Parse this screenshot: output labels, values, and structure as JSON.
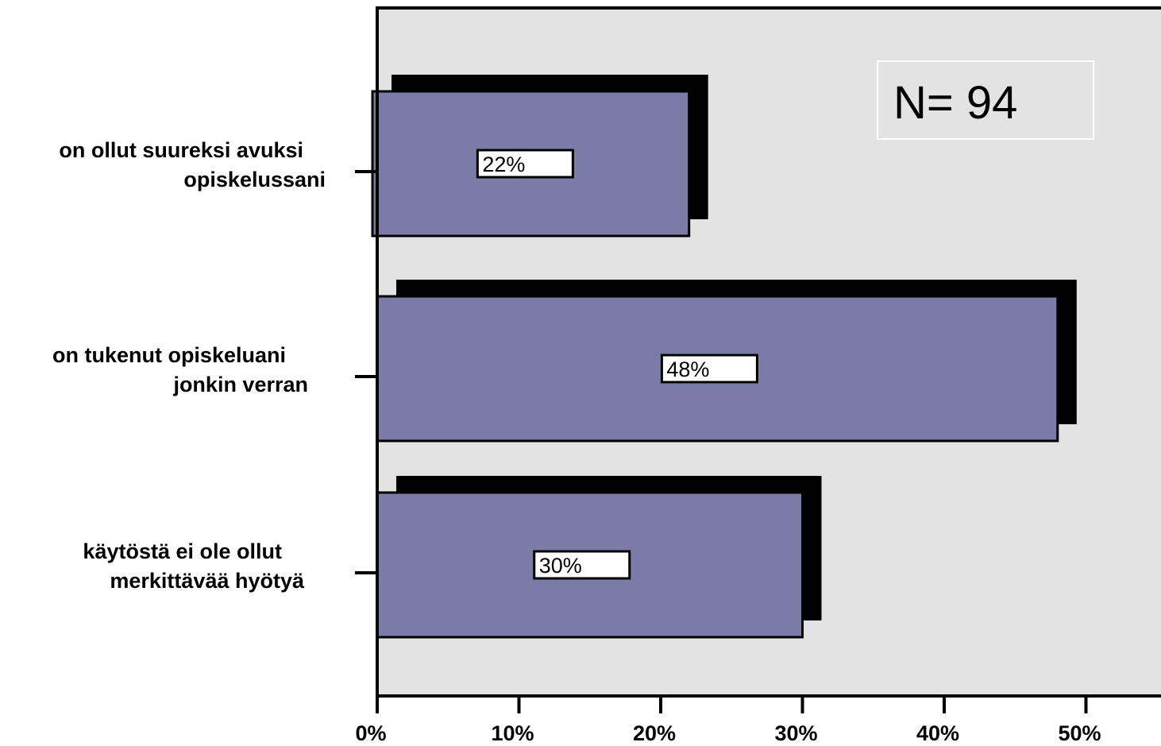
{
  "chart_data": {
    "type": "bar",
    "orientation": "horizontal",
    "categories": [
      [
        "on ollut suureksi avuksi",
        "opiskelussani"
      ],
      [
        "on tukenut opiskeluani",
        "jonkin verran"
      ],
      [
        "käytöstä ei ole ollut",
        "merkittävää hyötyä"
      ]
    ],
    "values": [
      22,
      48,
      30
    ],
    "data_labels": [
      "22%",
      "48%",
      "30%"
    ],
    "xlim": [
      0,
      55
    ],
    "xticks": [
      0,
      10,
      20,
      30,
      40,
      50
    ],
    "xtick_labels": [
      "0%",
      "10%",
      "20%",
      "30%",
      "40%",
      "50%"
    ],
    "annotation": "N= 94",
    "title": "",
    "xlabel": "",
    "ylabel": "",
    "grid": false,
    "colors": {
      "bar": "#7b7ba8",
      "shadow": "#000000",
      "plot_background": "#e3e3e3",
      "label_box": "#ffffff"
    }
  }
}
